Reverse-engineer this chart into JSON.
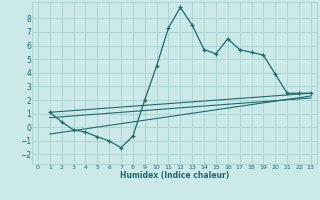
{
  "xlabel": "Humidex (Indice chaleur)",
  "bg_color": "#cce9e9",
  "grid_color": "#aed4d4",
  "line_color": "#1a6b6b",
  "xlim": [
    -0.5,
    23.5
  ],
  "ylim": [
    -2.7,
    9.2
  ],
  "xticks": [
    0,
    1,
    2,
    3,
    4,
    5,
    6,
    7,
    8,
    9,
    10,
    11,
    12,
    13,
    14,
    15,
    16,
    17,
    18,
    19,
    20,
    21,
    22,
    23
  ],
  "yticks": [
    -2,
    -1,
    0,
    1,
    2,
    3,
    4,
    5,
    6,
    7,
    8
  ],
  "curve_x": [
    1,
    2,
    3,
    4,
    5,
    6,
    7,
    8,
    9,
    10,
    11,
    12,
    13,
    14,
    15,
    16,
    17,
    18,
    19,
    20,
    21,
    22,
    23
  ],
  "curve_y": [
    1.1,
    0.4,
    -0.2,
    -0.35,
    -0.7,
    -1.0,
    -1.5,
    -0.65,
    2.0,
    4.5,
    7.3,
    8.8,
    7.5,
    5.7,
    5.4,
    6.5,
    5.7,
    5.5,
    5.3,
    3.9,
    2.5,
    2.5,
    2.5
  ],
  "line1_x": [
    1,
    23
  ],
  "line1_y": [
    1.1,
    2.5
  ],
  "line2_x": [
    1,
    23
  ],
  "line2_y": [
    0.7,
    2.15
  ],
  "line3_x": [
    1,
    23
  ],
  "line3_y": [
    -0.5,
    2.3
  ]
}
